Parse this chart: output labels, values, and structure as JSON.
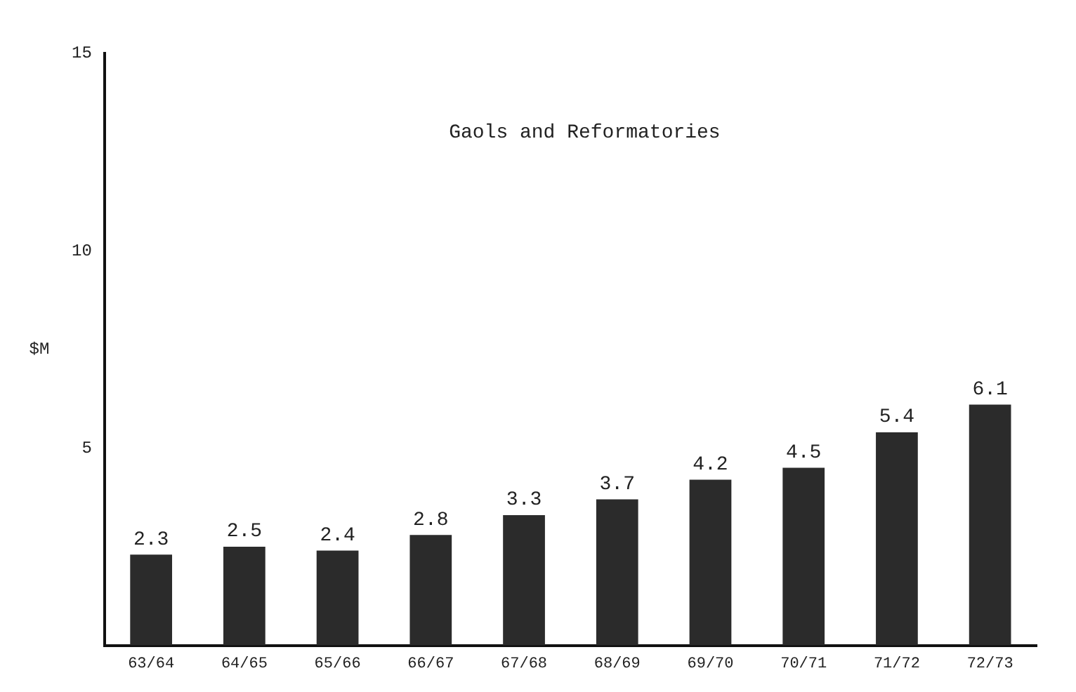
{
  "chart_data": {
    "type": "bar",
    "title": "Gaols and Reformatories",
    "ylabel": "$M",
    "categories": [
      "63/64",
      "64/65",
      "65/66",
      "66/67",
      "67/68",
      "68/69",
      "69/70",
      "70/71",
      "71/72",
      "72/73"
    ],
    "values": [
      2.3,
      2.5,
      2.4,
      2.8,
      3.3,
      3.7,
      4.2,
      4.5,
      5.4,
      6.1
    ],
    "color": "#2b2b2b",
    "ylim": [
      0,
      15
    ],
    "yticks": [
      5,
      10,
      15
    ],
    "grid": false,
    "data_labels": true
  }
}
